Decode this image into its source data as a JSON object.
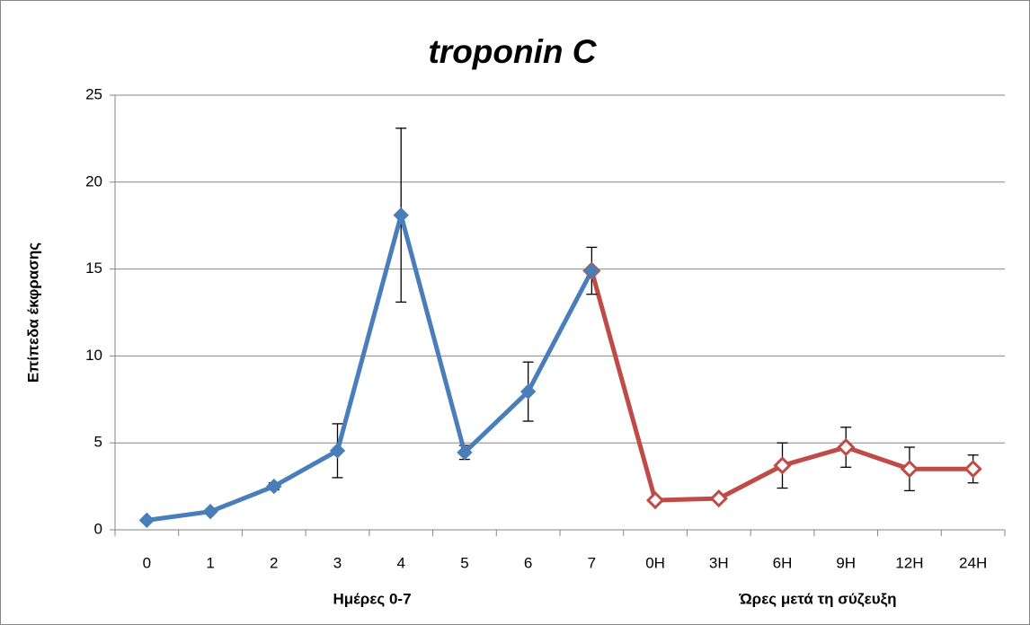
{
  "chart_data": {
    "type": "line",
    "title": "troponin C",
    "ylabel": "Επίπεδα έκφρασης",
    "xlabel_groups": [
      "Ημέρες 0-7",
      "Ώρες μετά τη σύζευξη"
    ],
    "categories": [
      "0",
      "1",
      "2",
      "3",
      "4",
      "5",
      "6",
      "7",
      "0H",
      "3H",
      "6H",
      "9H",
      "12H",
      "24H"
    ],
    "series": [
      {
        "color": "#4a7ebb",
        "marker": "filled",
        "values": [
          0.55,
          1.05,
          2.5,
          4.55,
          18.1,
          4.45,
          7.95,
          14.9,
          null,
          null,
          null,
          null,
          null,
          null
        ],
        "errors": [
          0.05,
          0.05,
          0.2,
          1.55,
          5.0,
          0.4,
          1.7,
          1.35,
          null,
          null,
          null,
          null,
          null,
          null
        ]
      },
      {
        "color": "#be4b48",
        "marker": "hollow",
        "values": [
          null,
          null,
          null,
          null,
          null,
          null,
          null,
          14.9,
          1.7,
          1.8,
          3.7,
          4.75,
          3.5,
          3.5
        ],
        "errors": [
          null,
          null,
          null,
          null,
          null,
          null,
          null,
          null,
          0.05,
          0.05,
          1.3,
          1.15,
          1.25,
          0.8
        ]
      }
    ],
    "ylim": [
      0,
      25
    ],
    "yticks": [
      0,
      5,
      10,
      15,
      20,
      25
    ],
    "grid": true
  }
}
